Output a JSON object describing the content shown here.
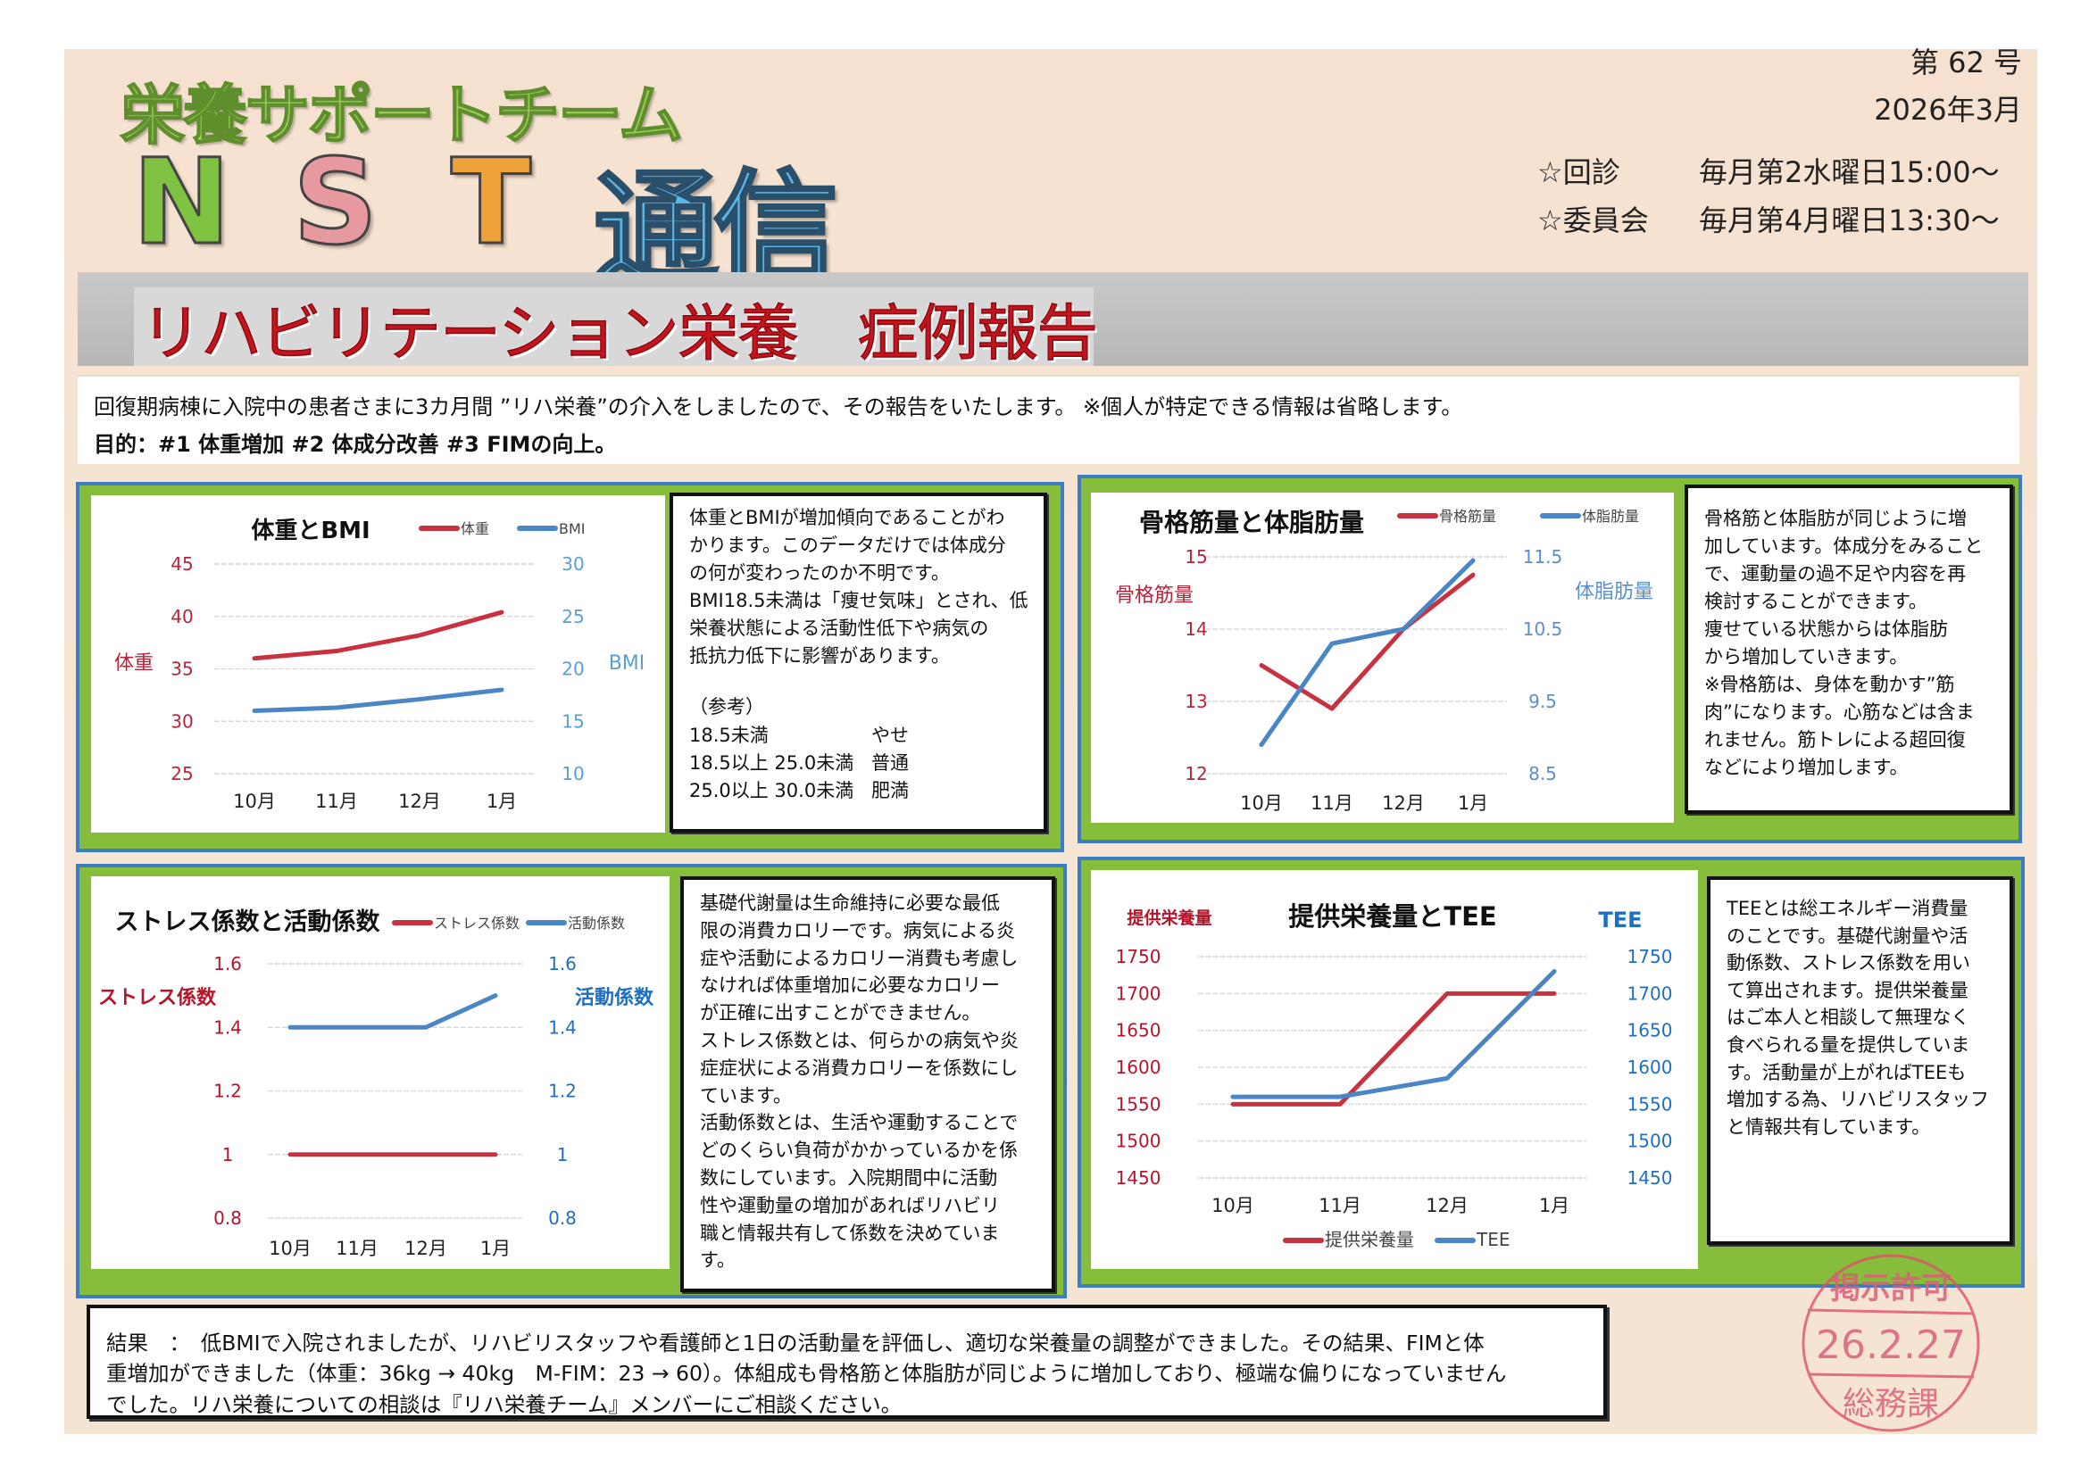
{
  "header": {
    "team_name": "栄養サポートチーム",
    "nst_letters": [
      "N",
      "S",
      "T"
    ],
    "nst_colors": [
      "#7fc241",
      "#e69aa0",
      "#f0a23a"
    ],
    "tsushin": "通信",
    "issue_number": "第 62 号",
    "issue_date": "2026年3月",
    "schedule": [
      {
        "label": "☆回診",
        "value": "毎月第2水曜日15:00～"
      },
      {
        "label": "☆委員会",
        "value": "毎月第4月曜日13:30～"
      }
    ]
  },
  "banner": {
    "title": "リハビリテーション栄養　症例報告"
  },
  "intro": {
    "line1": "回復期病棟に入院中の患者さまに3カ月間 ”リハ栄養”の介入をしましたので、その報告をいたします。 ※個人が特定できる情報は省略します。",
    "line2": "目的：#1 体重増加 #2  体成分改善 #3 FIMの向上。"
  },
  "colors": {
    "series_red": "#c8323f",
    "series_blue": "#4a86c6",
    "panel_green": "#86bd3a",
    "panel_border": "#3d7cc0"
  },
  "panels": [
    {
      "lines": [
        "体重とBMIが増加傾向であることがわ",
        "かります。このデータだけでは体成分",
        "の何が変わったのか不明です。",
        "BMI18.5未満は「痩せ気味」とされ、低",
        "栄養状態による活動性低下や病気の",
        "抵抗力低下に影響があります。"
      ],
      "reference_title": "（参考）",
      "reference_rows": [
        [
          "18.5未満",
          "やせ"
        ],
        [
          "18.5以上 25.0未満",
          "普通"
        ],
        [
          "25.0以上 30.0未満",
          "肥満"
        ]
      ]
    },
    {
      "lines": [
        "骨格筋と体脂肪が同じように増",
        "加しています。体成分をみること",
        "で、運動量の過不足や内容を再",
        "検討することができます。",
        "痩せている状態からは体脂肪",
        "から増加していきます。",
        "※骨格筋は、身体を動かす”筋",
        "肉”になります。心筋などは含ま",
        "れません。筋トレによる超回復",
        "などにより増加します。"
      ]
    },
    {
      "lines": [
        "基礎代謝量は生命維持に必要な最低",
        "限の消費カロリーです。病気による炎",
        "症や活動によるカロリー消費も考慮し",
        "なければ体重増加に必要なカロリー",
        "が正確に出すことができません。",
        "ストレス係数とは、何らかの病気や炎",
        "症症状による消費カロリーを係数にし",
        "ています。",
        "活動係数とは、生活や運動することで",
        "どのくらい負荷がかかっているかを係",
        "数にしています。入院期間中に活動",
        "性や運動量の増加があればリハビリ",
        "職と情報共有して係数を決めていま",
        "す。"
      ]
    },
    {
      "lines": [
        "TEEとは総エネルギー消費量",
        "のことです。基礎代謝量や活",
        "動係数、ストレス係数を用い",
        "て算出されます。提供栄養量",
        "はご本人と相談して無理なく",
        "食べられる量を提供していま",
        "す。活動量が上がればTEEも",
        "増加する為、リハビリスタッフ",
        "と情報共有しています。"
      ]
    }
  ],
  "results": {
    "lines": [
      "結果　：　低BMIで入院されましたが、リハビリスタッフや看護師と1日の活動量を評価し、適切な栄養量の調整ができました。その結果、FIMと体",
      "重増加ができました（体重：36kg → 40kg　M-FIM：23 → 60）。体組成も骨格筋と体脂肪が同じように増加しており、極端な偏りになっていません",
      "でした。リハ栄養についての相談は『リハ栄養チーム』メンバーにご相談ください。"
    ]
  },
  "stamp": {
    "top": "掲示許可",
    "date": "26.2.27",
    "bottom": "総務課",
    "color": "#e0506a"
  },
  "chart_data": [
    {
      "type": "line",
      "title": "体重とBMI",
      "categories": [
        "10月",
        "11月",
        "12月",
        "1月"
      ],
      "left_axis": {
        "label": "体重",
        "range": [
          25,
          45
        ],
        "ticks": [
          "45",
          "40",
          "35",
          "30",
          "25"
        ],
        "color": "#b5253a"
      },
      "right_axis": {
        "label": "BMI",
        "range": [
          10,
          30
        ],
        "ticks": [
          "30",
          "25",
          "20",
          "15",
          "10"
        ],
        "color": "#5a9fd2"
      },
      "series": [
        {
          "name": "体重",
          "axis": "left",
          "color": "#c8323f",
          "values": [
            36.0,
            36.7,
            38.2,
            40.4
          ]
        },
        {
          "name": "BMI",
          "axis": "right",
          "color": "#4a86c6",
          "values": [
            16.0,
            16.3,
            17.1,
            18.0
          ]
        }
      ],
      "grid": true,
      "legend": "top-right"
    },
    {
      "type": "line",
      "title": "骨格筋量と体脂肪量",
      "categories": [
        "10月",
        "11月",
        "12月",
        "1月"
      ],
      "left_axis": {
        "label": "骨格筋量",
        "range": [
          12,
          15
        ],
        "ticks": [
          "15",
          "14",
          "13",
          "12"
        ],
        "color": "#b5253a"
      },
      "right_axis": {
        "label": "体脂肪量",
        "range": [
          8.5,
          11.5
        ],
        "ticks": [
          "11.5",
          "10.5",
          "9.5",
          "8.5"
        ],
        "color": "#5a8fc9"
      },
      "series": [
        {
          "name": "骨格筋量",
          "axis": "left",
          "color": "#c8323f",
          "values": [
            13.5,
            12.9,
            14.0,
            14.75
          ]
        },
        {
          "name": "体脂肪量",
          "axis": "right",
          "color": "#4a86c6",
          "values": [
            8.9,
            10.3,
            10.5,
            11.45
          ]
        }
      ],
      "grid": true,
      "legend": "top-right"
    },
    {
      "type": "line",
      "title": "ストレス係数と活動係数",
      "categories": [
        "10月",
        "11月",
        "12月",
        "1月"
      ],
      "left_axis": {
        "label": "ストレス係数",
        "range": [
          0.8,
          1.6
        ],
        "ticks": [
          "1.6",
          "1.4",
          "1.2",
          "1",
          "0.8"
        ],
        "color": "#b5152a"
      },
      "right_axis": {
        "label": "活動係数",
        "range": [
          0.8,
          1.6
        ],
        "ticks": [
          "1.6",
          "1.4",
          "1.2",
          "1",
          "0.8"
        ],
        "color": "#1f6fc0"
      },
      "series": [
        {
          "name": "ストレス係数",
          "axis": "left",
          "color": "#c8323f",
          "values": [
            1.0,
            1.0,
            1.0,
            1.0
          ]
        },
        {
          "name": "活動係数",
          "axis": "right",
          "color": "#4a86c6",
          "values": [
            1.4,
            1.4,
            1.4,
            1.5
          ]
        }
      ],
      "grid": true,
      "legend": "top-right"
    },
    {
      "type": "line",
      "title": "提供栄養量とTEE",
      "categories": [
        "10月",
        "11月",
        "12月",
        "1月"
      ],
      "left_axis": {
        "label": "提供栄養量",
        "range": [
          1450,
          1750
        ],
        "ticks": [
          "1750",
          "1700",
          "1650",
          "1600",
          "1550",
          "1500",
          "1450"
        ],
        "color": "#b5152a"
      },
      "right_axis": {
        "label": "TEE",
        "range": [
          1450,
          1750
        ],
        "ticks": [
          "1750",
          "1700",
          "1650",
          "1600",
          "1550",
          "1500",
          "1450"
        ],
        "color": "#1f6fc0"
      },
      "series": [
        {
          "name": "提供栄養量",
          "axis": "left",
          "color": "#c8323f",
          "values": [
            1550,
            1550,
            1700,
            1700
          ]
        },
        {
          "name": "TEE",
          "axis": "right",
          "color": "#4a86c6",
          "values": [
            1560,
            1560,
            1585,
            1730
          ]
        }
      ],
      "grid": true,
      "legend": "bottom"
    }
  ]
}
